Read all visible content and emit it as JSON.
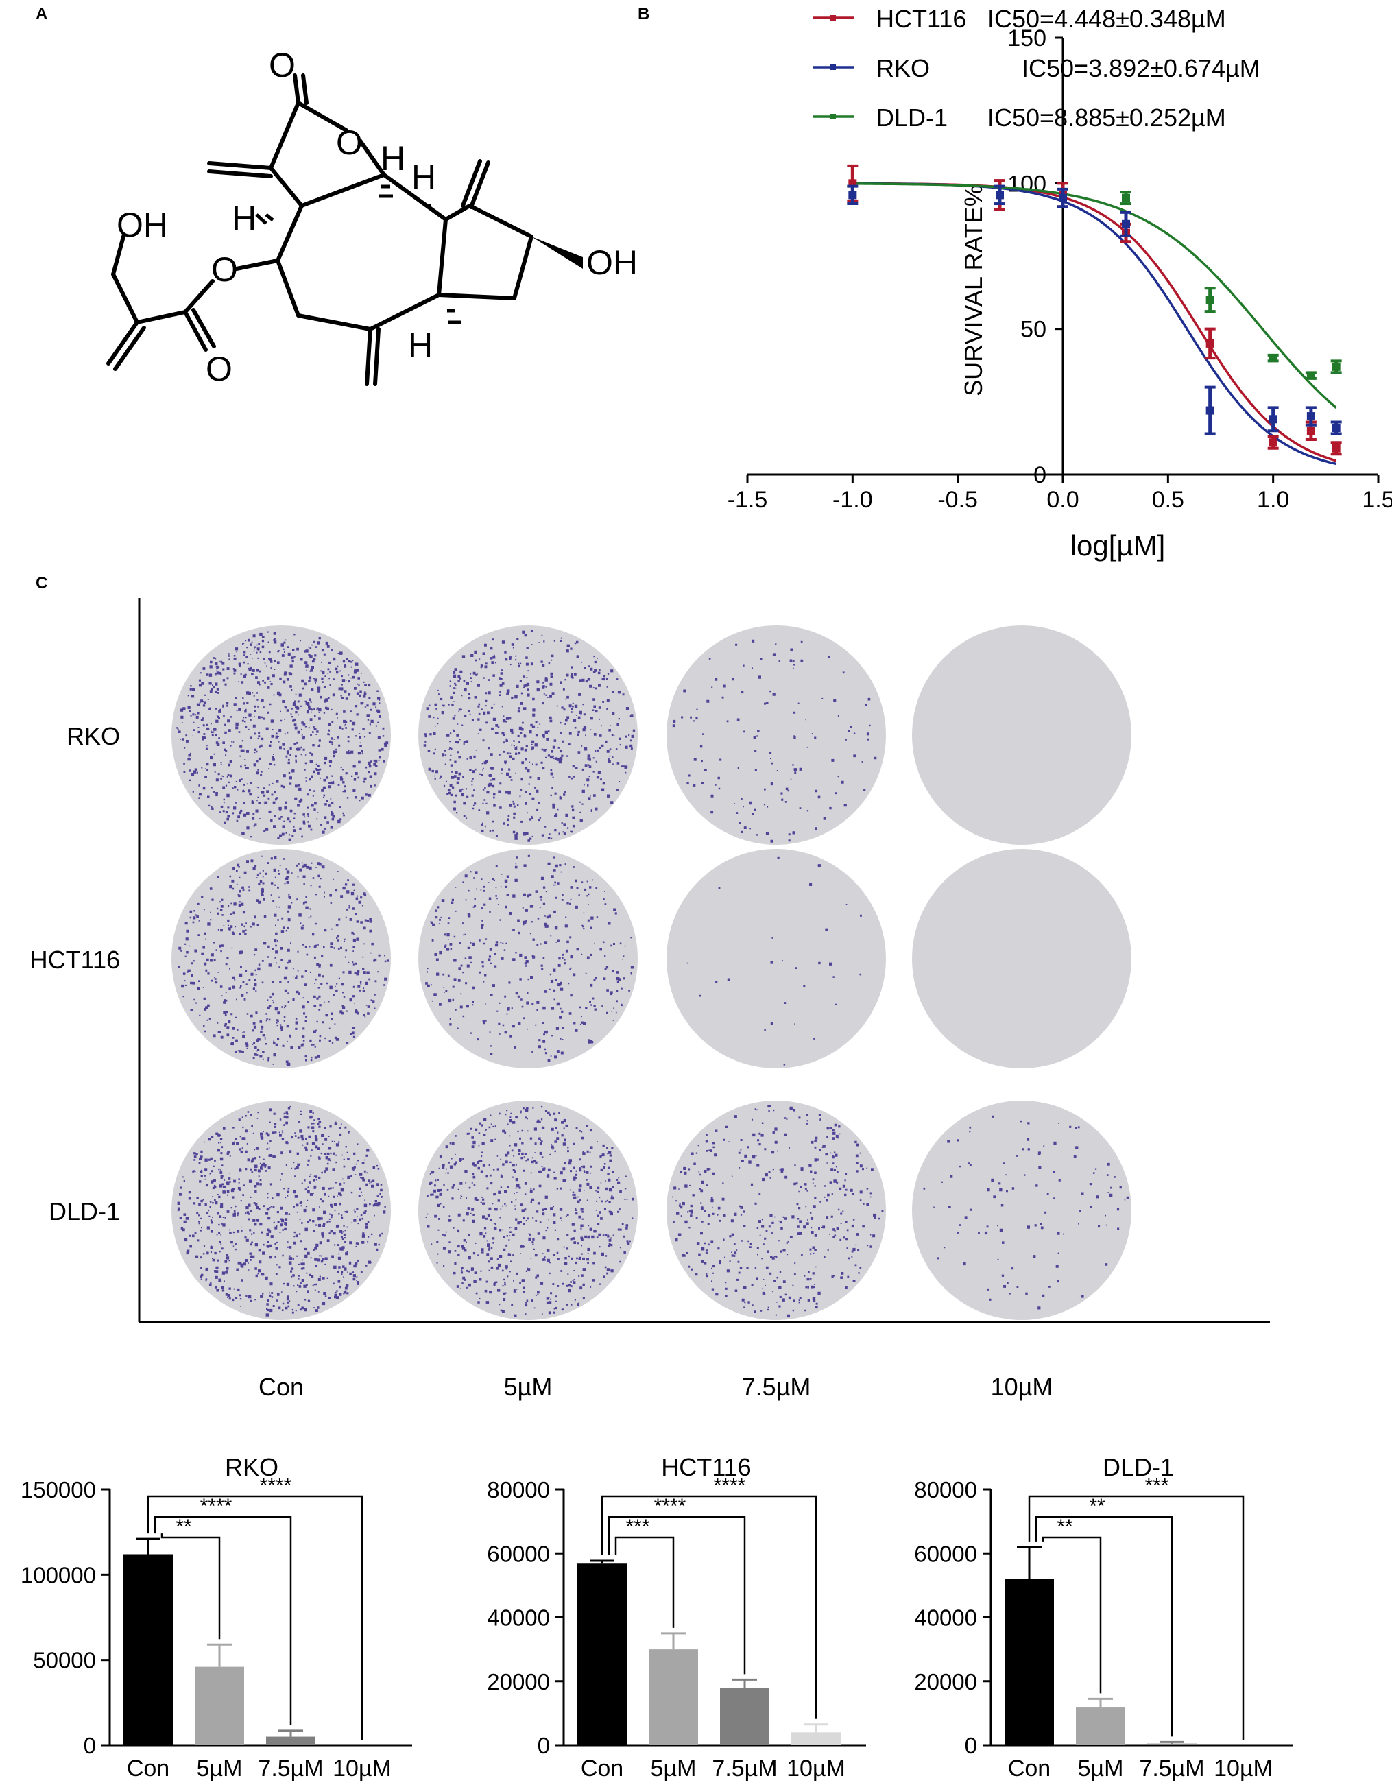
{
  "panels": {
    "a": "A",
    "b": "B",
    "c": "C"
  },
  "structure": {
    "atoms": [
      "O",
      "O",
      "OH",
      "H",
      "H",
      "O",
      "O",
      "OH",
      "H"
    ],
    "h_labels": [
      "H",
      "H",
      "H"
    ]
  },
  "colors": {
    "hct116": "#b2182b",
    "rko": "#1f2f8f",
    "dld1": "#217a2a",
    "dish_bg": "#d4d4d8",
    "colony": "#3a2a8c",
    "bar_con": "#000000",
    "bar_5": "#a6a6a6",
    "bar_7_5": "#7f7f7f",
    "bar_10": "#d9d9d9"
  },
  "chart_data": [
    {
      "id": "survival",
      "type": "line",
      "xlabel": "log[µM]",
      "ylabel": "SURVIVAL RATE%",
      "xlim": [
        -1.5,
        1.5
      ],
      "ylim": [
        0,
        150
      ],
      "x_ticks": [
        "-1.5",
        "-1.0",
        "-0.5",
        "0.0",
        "0.5",
        "1.0",
        "1.5"
      ],
      "y_ticks": [
        "0",
        "50",
        "100",
        "150"
      ],
      "legend_position": "top",
      "series": [
        {
          "name": "HCT116",
          "ic50_text": "IC50=4.448±0.348µM",
          "color": "#b2182b",
          "x": [
            -1.0,
            -0.3,
            0.0,
            0.3,
            0.7,
            1.0,
            1.18,
            1.3
          ],
          "y": [
            100,
            96,
            96,
            83,
            45,
            11,
            15,
            9
          ],
          "err": [
            6,
            5,
            4,
            3,
            5,
            2,
            3,
            2
          ],
          "ic50_log": 0.648,
          "hill": 2.0
        },
        {
          "name": "RKO",
          "ic50_text": "IC50=3.892±0.674µM",
          "color": "#1f2f8f",
          "x": [
            -1.0,
            -0.3,
            0.0,
            0.3,
            0.7,
            1.0,
            1.18,
            1.3
          ],
          "y": [
            96,
            96,
            95,
            86,
            22,
            19,
            20,
            16
          ],
          "err": [
            3,
            3,
            3,
            4,
            8,
            4,
            3,
            2
          ],
          "ic50_log": 0.59,
          "hill": 2.0
        },
        {
          "name": "DLD-1",
          "ic50_text": "IC50=8.885±0.252µM",
          "color": "#217a2a",
          "x": [
            0.3,
            0.7,
            1.0,
            1.18,
            1.3
          ],
          "y": [
            95,
            60,
            40,
            34,
            37
          ],
          "err": [
            2,
            4,
            1,
            1,
            2
          ],
          "ic50_log": 0.949,
          "hill": 1.5
        }
      ]
    },
    {
      "id": "rko_bar",
      "type": "bar",
      "title": "RKO",
      "categories": [
        "Con",
        "5µM",
        "7.5µM",
        "10µM"
      ],
      "values": [
        112000,
        46000,
        5000,
        0
      ],
      "err": [
        9000,
        13000,
        3500,
        0
      ],
      "ylim": [
        0,
        150000
      ],
      "y_ticks": [
        "0",
        "50000",
        "100000",
        "150000"
      ],
      "significance": [
        "**",
        "****",
        "****"
      ]
    },
    {
      "id": "hct116_bar",
      "type": "bar",
      "title": "HCT116",
      "categories": [
        "Con",
        "5µM",
        "7.5µM",
        "10µM"
      ],
      "values": [
        57000,
        30000,
        18000,
        4000
      ],
      "err": [
        700,
        5000,
        2500,
        2500
      ],
      "ylim": [
        0,
        80000
      ],
      "y_ticks": [
        "0",
        "20000",
        "40000",
        "60000",
        "80000"
      ],
      "significance": [
        "***",
        "****",
        "****"
      ]
    },
    {
      "id": "dld1_bar",
      "type": "bar",
      "title": "DLD-1",
      "categories": [
        "Con",
        "5µM",
        "7.5µM",
        "10µM"
      ],
      "values": [
        52000,
        12000,
        500,
        0
      ],
      "err": [
        10000,
        2500,
        500,
        0
      ],
      "ylim": [
        0,
        80000
      ],
      "y_ticks": [
        "0",
        "20000",
        "40000",
        "60000",
        "80000"
      ],
      "significance": [
        "**",
        "**",
        "***"
      ]
    }
  ],
  "colony_assay": {
    "rows": [
      {
        "label": "RKO",
        "densities": [
          1.0,
          0.75,
          0.15,
          0.0
        ]
      },
      {
        "label": "HCT116",
        "densities": [
          0.7,
          0.45,
          0.03,
          0.0
        ]
      },
      {
        "label": "DLD-1",
        "densities": [
          1.0,
          0.8,
          0.5,
          0.12
        ]
      }
    ],
    "columns": [
      "Con",
      "5µM",
      "7.5µM",
      "10µM"
    ]
  }
}
